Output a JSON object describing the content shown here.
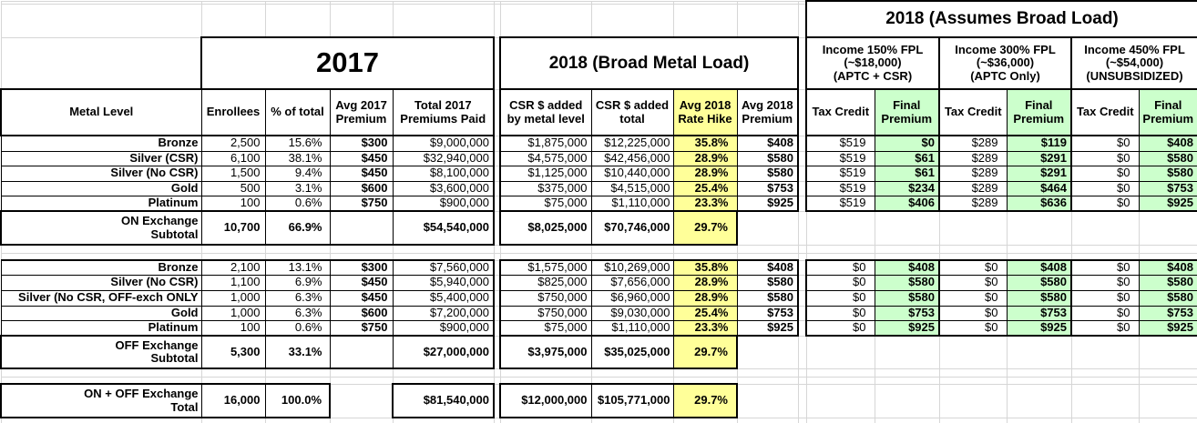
{
  "colors": {
    "highlight_yellow": "#FFFF99",
    "highlight_green": "#CCFFCC",
    "grid_line": "#D6D6D6",
    "table_border": "#000000"
  },
  "spreadsheet": {
    "titles": {
      "left_2017": "2017",
      "middle_2018": "2018 (Broad Metal Load)",
      "right_2018": "2018 (Assumes Broad Load)"
    },
    "income_groups": [
      {
        "label": "Income 150% FPL\n(~$18,000)\n(APTC + CSR)"
      },
      {
        "label": "Income 300% FPL\n(~$36,000)\n(APTC Only)"
      },
      {
        "label": "Income 450% FPL\n(~$54,000)\n(UNSUBSIDIZED)"
      }
    ],
    "headers": {
      "metal_level": "Metal Level",
      "enrollees": "Enrollees",
      "pct_of_total": "% of total",
      "avg_2017_premium": "Avg 2017\nPremium",
      "total_2017_premiums": "Total 2017\nPremiums Paid",
      "csr_added_by_level": "CSR $ added\nby metal level",
      "csr_added_total": "CSR $ added\ntotal",
      "avg_2018_rate_hike": "Avg 2018\nRate Hike",
      "avg_2018_premium": "Avg 2018\nPremium",
      "tax_credit": "Tax Credit",
      "final_premium": "Final\nPremium"
    },
    "on_exchange": {
      "rows": [
        [
          "Bronze",
          "2,500",
          "15.6%",
          "$300",
          "$9,000,000",
          "$1,875,000",
          "$12,225,000",
          "35.8%",
          "$408",
          "$519",
          "$0",
          "$289",
          "$119",
          "$0",
          "$408"
        ],
        [
          "Silver (CSR)",
          "6,100",
          "38.1%",
          "$450",
          "$32,940,000",
          "$4,575,000",
          "$42,456,000",
          "28.9%",
          "$580",
          "$519",
          "$61",
          "$289",
          "$291",
          "$0",
          "$580"
        ],
        [
          "Silver (No CSR)",
          "1,500",
          "9.4%",
          "$450",
          "$8,100,000",
          "$1,125,000",
          "$10,440,000",
          "28.9%",
          "$580",
          "$519",
          "$61",
          "$289",
          "$291",
          "$0",
          "$580"
        ],
        [
          "Gold",
          "500",
          "3.1%",
          "$600",
          "$3,600,000",
          "$375,000",
          "$4,515,000",
          "25.4%",
          "$753",
          "$519",
          "$234",
          "$289",
          "$464",
          "$0",
          "$753"
        ],
        [
          "Platinum",
          "100",
          "0.6%",
          "$750",
          "$900,000",
          "$75,000",
          "$1,110,000",
          "23.3%",
          "$925",
          "$519",
          "$406",
          "$289",
          "$636",
          "$0",
          "$925"
        ]
      ],
      "subtotal": {
        "label": "ON Exchange\nSubtotal",
        "enrollees": "10,700",
        "pct_of_total": "66.9%",
        "total_2017_premiums": "$54,540,000",
        "csr_added": "$8,025,000",
        "csr_added_total": "$70,746,000",
        "rate_hike": "29.7%"
      }
    },
    "off_exchange": {
      "rows": [
        [
          "Bronze",
          "2,100",
          "13.1%",
          "$300",
          "$7,560,000",
          "$1,575,000",
          "$10,269,000",
          "35.8%",
          "$408",
          "$0",
          "$408",
          "$0",
          "$408",
          "$0",
          "$408"
        ],
        [
          "Silver (No CSR)",
          "1,100",
          "6.9%",
          "$450",
          "$5,940,000",
          "$825,000",
          "$7,656,000",
          "28.9%",
          "$580",
          "$0",
          "$580",
          "$0",
          "$580",
          "$0",
          "$580"
        ],
        [
          "Silver (No CSR, OFF-exch ONLY",
          "1,000",
          "6.3%",
          "$450",
          "$5,400,000",
          "$750,000",
          "$6,960,000",
          "28.9%",
          "$580",
          "$0",
          "$580",
          "$0",
          "$580",
          "$0",
          "$580"
        ],
        [
          "Gold",
          "1,000",
          "6.3%",
          "$600",
          "$7,200,000",
          "$750,000",
          "$9,030,000",
          "25.4%",
          "$753",
          "$0",
          "$753",
          "$0",
          "$753",
          "$0",
          "$753"
        ],
        [
          "Platinum",
          "100",
          "0.6%",
          "$750",
          "$900,000",
          "$75,000",
          "$1,110,000",
          "23.3%",
          "$925",
          "$0",
          "$925",
          "$0",
          "$925",
          "$0",
          "$925"
        ]
      ],
      "subtotal": {
        "label": "OFF Exchange\nSubtotal",
        "enrollees": "5,300",
        "pct_of_total": "33.1%",
        "total_2017_premiums": "$27,000,000",
        "csr_added": "$3,975,000",
        "csr_added_total": "$35,025,000",
        "rate_hike": "29.7%"
      }
    },
    "grand_total": {
      "label": "ON + OFF Exchange\nTotal",
      "enrollees": "16,000",
      "pct_of_total": "100.0%",
      "total_2017_premiums": "$81,540,000",
      "csr_added": "$12,000,000",
      "csr_added_total": "$105,771,000",
      "rate_hike": "29.7%"
    }
  }
}
